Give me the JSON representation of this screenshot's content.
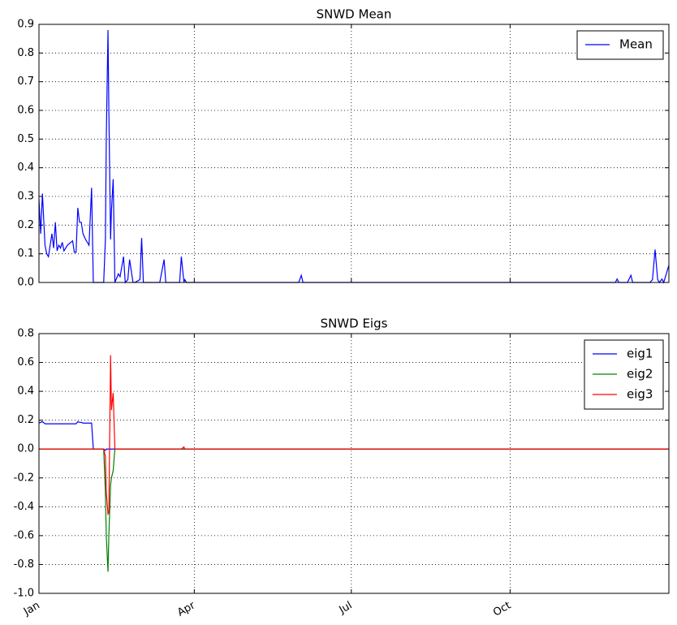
{
  "chart_data": [
    {
      "type": "line",
      "title": "SNWD Mean",
      "x": [
        0,
        1,
        2,
        3.5,
        4.5,
        5.5,
        7.5,
        8.5,
        9.5,
        10.5,
        11.5,
        12.5,
        13.5,
        14.5,
        16.5,
        19.5,
        20.5,
        21.5,
        22.5,
        23.5,
        24.5,
        25.5,
        27,
        29,
        30.5,
        31.5,
        37.5,
        38.5,
        39,
        40,
        40.5,
        41.5,
        42,
        43,
        44,
        46,
        47,
        49,
        50,
        51.5,
        52.5,
        54.5,
        55.5,
        58.5,
        59.5,
        60.5,
        61.5,
        70,
        72.5,
        73.5,
        81.5,
        82.5,
        84,
        84.5,
        85.5,
        150.5,
        152,
        153,
        334,
        335,
        336,
        341,
        343,
        344,
        354,
        355.5,
        357,
        358.5,
        359.5,
        361,
        362,
        365
      ],
      "series": [
        {
          "name": "Mean",
          "color": "#0000ff",
          "values": [
            0.29,
            0.17,
            0.31,
            0.13,
            0.1,
            0.09,
            0.17,
            0.12,
            0.21,
            0.11,
            0.13,
            0.12,
            0.14,
            0.11,
            0.13,
            0.145,
            0.105,
            0.105,
            0.26,
            0.21,
            0.21,
            0.17,
            0.15,
            0.13,
            0.33,
            0,
            0,
            0.15,
            0.5,
            0.88,
            0.6,
            0.15,
            0.25,
            0.36,
            0,
            0.03,
            0.02,
            0.09,
            0,
            0.01,
            0.08,
            0,
            0,
            0.01,
            0.155,
            0,
            0,
            0,
            0.08,
            0,
            0,
            0.09,
            0,
            0.01,
            0,
            0,
            0.025,
            0,
            0,
            0.012,
            0,
            0,
            0.025,
            0,
            0,
            0.01,
            0.115,
            0.01,
            0,
            0.012,
            0,
            0.06
          ]
        }
      ],
      "xlim": [
        0,
        365
      ],
      "ylim": [
        0,
        0.9
      ],
      "yticks": [
        {
          "value": 0,
          "label": "0.0"
        },
        0.1,
        0.2,
        0.3,
        0.4,
        0.5,
        0.6,
        0.7,
        0.8,
        0.9
      ],
      "grid": true,
      "legend": "upper right"
    },
    {
      "type": "line",
      "title": "SNWD Eigs",
      "x": [
        0,
        1,
        2,
        3.5,
        4.5,
        5.5,
        7.5,
        8.5,
        9.5,
        10.5,
        11.5,
        12.5,
        13.5,
        14.5,
        16.5,
        19.5,
        20.5,
        21.5,
        22.5,
        23.5,
        24.5,
        25.5,
        27,
        29,
        30.5,
        31.5,
        37.5,
        38.5,
        39,
        40,
        40.5,
        41.5,
        42,
        43,
        44,
        46,
        47,
        49,
        50,
        51.5,
        52.5,
        54.5,
        55.5,
        58.5,
        59.5,
        60.5,
        61.5,
        70,
        72.5,
        73.5,
        81.5,
        82.5,
        84,
        84.5,
        85.5,
        150.5,
        152,
        153,
        334,
        335,
        336,
        341,
        343,
        344,
        354,
        355.5,
        357,
        358.5,
        359.5,
        361,
        362,
        365
      ],
      "series": [
        {
          "name": "eig1",
          "color": "#0000ff",
          "values": [
            0.18,
            0.185,
            0.19,
            0.175,
            0.175,
            0.175,
            0.175,
            0.175,
            0.175,
            0.175,
            0.175,
            0.175,
            0.175,
            0.175,
            0.175,
            0.175,
            0.175,
            0.175,
            0.19,
            0.185,
            0.185,
            0.18,
            0.18,
            0.18,
            0.18,
            0,
            0,
            -0.01,
            0,
            0,
            0,
            0,
            0,
            0,
            0,
            0,
            0,
            0,
            0,
            0,
            0,
            0,
            0,
            0,
            0,
            0,
            0,
            0,
            0,
            0,
            0,
            0,
            0,
            0,
            0,
            0,
            0,
            0,
            0,
            0,
            0,
            0,
            0,
            0,
            0,
            0,
            0,
            0,
            0,
            0,
            0,
            0
          ]
        },
        {
          "name": "eig2",
          "color": "#008000",
          "values": [
            0,
            0,
            0,
            0,
            0,
            0,
            0,
            0,
            0,
            0,
            0,
            0,
            0,
            0,
            0,
            0,
            0,
            0,
            0,
            0,
            0,
            0,
            0,
            0,
            0,
            0,
            0,
            -0.3,
            -0.6,
            -0.85,
            -0.6,
            -0.25,
            -0.2,
            -0.15,
            0,
            0,
            0,
            0,
            0,
            0,
            0,
            0,
            0,
            0,
            0,
            0,
            0,
            0,
            0,
            0,
            0,
            0,
            0,
            0,
            0,
            0,
            0,
            0,
            0,
            0,
            0,
            0,
            0,
            0,
            0,
            0,
            0,
            0,
            0,
            0,
            0,
            0
          ]
        },
        {
          "name": "eig3",
          "color": "#ff0000",
          "values": [
            0,
            0,
            0,
            0,
            0,
            0,
            0,
            0,
            0,
            0,
            0,
            0,
            0,
            0,
            0,
            0,
            0,
            0,
            0,
            0,
            0,
            0,
            0,
            0,
            0,
            0,
            0,
            -0.05,
            -0.3,
            -0.45,
            -0.44,
            0.65,
            0.27,
            0.39,
            0,
            0,
            0,
            0,
            0,
            0,
            0,
            0,
            0,
            0,
            0,
            0,
            0,
            0,
            0,
            0,
            0,
            0,
            0.015,
            0,
            0,
            0,
            0,
            0,
            0,
            0,
            0,
            0,
            0,
            0,
            0,
            0,
            0,
            0,
            0,
            0,
            0,
            0
          ]
        }
      ],
      "xlim": [
        0,
        365
      ],
      "ylim": [
        -1.0,
        0.8
      ],
      "xticks": [
        {
          "value": 0,
          "label": "Jan"
        },
        {
          "value": 90,
          "label": "Apr"
        },
        {
          "value": 181,
          "label": "Jul"
        },
        {
          "value": 273,
          "label": "Oct"
        }
      ],
      "yticks": [
        {
          "value": -1.0,
          "label": "-1.0"
        },
        -0.8,
        -0.6,
        -0.4,
        -0.2,
        {
          "value": 0,
          "label": "0.0"
        },
        0.2,
        0.4,
        0.6,
        0.8
      ],
      "grid": true,
      "legend": "upper right"
    }
  ]
}
